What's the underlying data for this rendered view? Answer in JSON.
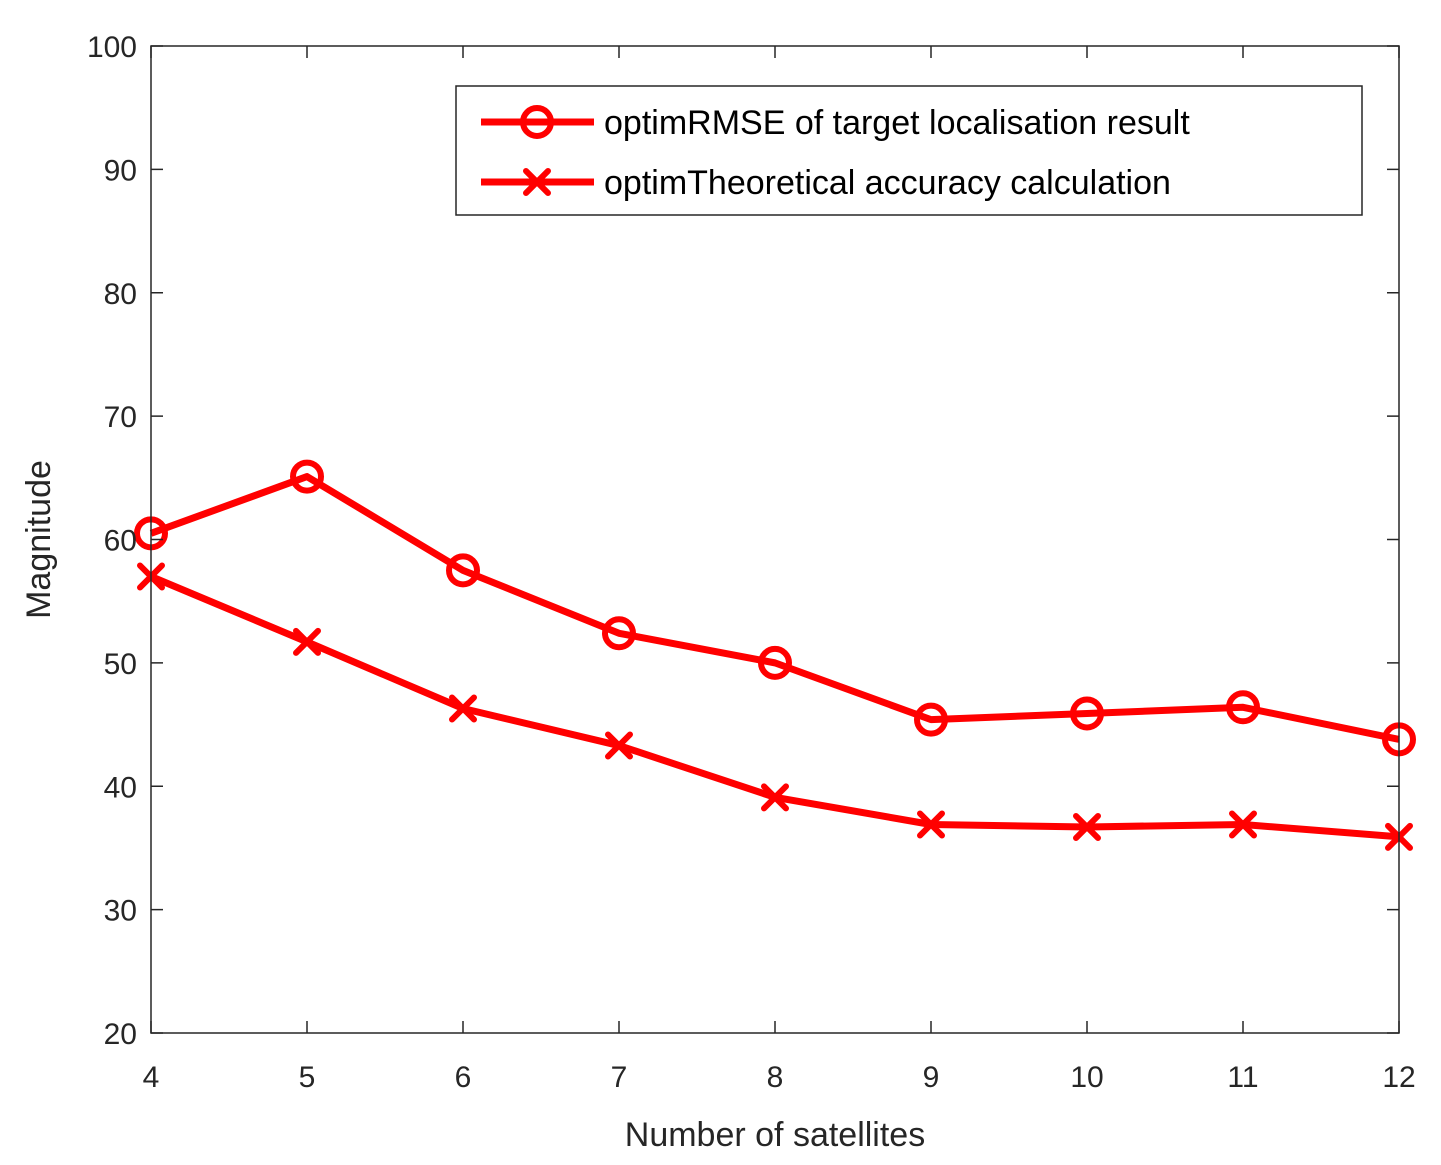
{
  "colors": {
    "series": "#ff0000",
    "axis": "#262626",
    "background": "#ffffff"
  },
  "chart_data": {
    "type": "line",
    "title": "",
    "xlabel": "Number of satellites",
    "ylabel": "Magnitude",
    "xlim": [
      4,
      12
    ],
    "ylim": [
      20,
      100
    ],
    "xticks": [
      4,
      5,
      6,
      7,
      8,
      9,
      10,
      11,
      12
    ],
    "yticks": [
      20,
      30,
      40,
      50,
      60,
      70,
      80,
      90,
      100
    ],
    "grid": false,
    "legend_position": "top-right",
    "x": [
      4,
      5,
      6,
      7,
      8,
      9,
      10,
      11,
      12
    ],
    "series": [
      {
        "name": "optimRMSE of target localisation result",
        "marker": "circle",
        "color": "#ff0000",
        "values": [
          60.5,
          65.1,
          57.5,
          52.4,
          50.0,
          45.4,
          45.9,
          46.4,
          43.8
        ]
      },
      {
        "name": "optimTheoretical accuracy calculation",
        "marker": "x",
        "color": "#ff0000",
        "values": [
          57.0,
          51.7,
          46.3,
          43.3,
          39.1,
          36.9,
          36.7,
          36.9,
          35.9
        ]
      }
    ]
  }
}
